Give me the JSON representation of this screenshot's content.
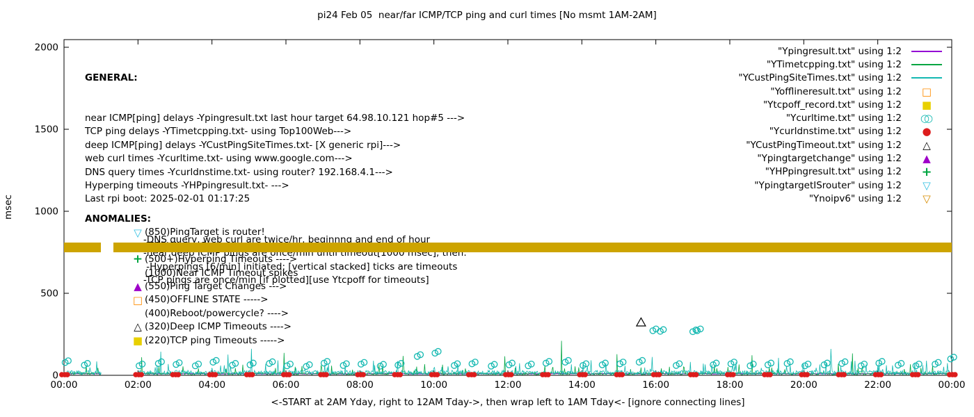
{
  "title": "pi24 Feb 05  near/far ICMP/TCP ping and curl times [No msmt 1AM-2AM]",
  "y_axis_label": "msec",
  "x_axis_caption": "<-START at 2AM Yday, right to 12AM Tday->, then wrap left to 1AM Tday<- [ignore connecting lines]",
  "general": {
    "heading": "GENERAL:",
    "lines": [
      "near ICMP[ping] delays -Ypingresult.txt last hour target 64.98.10.121 hop#5 --->",
      "TCP ping delays -YTimetcpping.txt- using Top100Web--->",
      "deep ICMP[ping] delays -YCustPingSiteTimes.txt- [X generic rpi]--->",
      "web curl times -Ycurltime.txt- using www.google.com--->",
      "DNS query times -Ycurldnstime.txt- using router? 192.168.4.1--->",
      "Hyperping timeouts -YHPpingresult.txt- --->",
      "Last rpi boot: 2025-02-01 01:17:25"
    ],
    "sub_lines": [
      "-DNS query, web curl are twice/hr, beginnng and end of hour",
      "-near,deep ICMP pings are once/min until timeout[1000 msec], then:",
      " -Hyperpings [6/min] initiated; [vertical stacked] ticks are timeouts",
      "-TCP pings are once/min [if plotted][use Ytcpoff for timeouts]"
    ]
  },
  "anomalies": {
    "heading": "ANOMALIES:",
    "items": [
      {
        "marker": "triangle-down-open",
        "color": "#31bfe2",
        "text": "(850)PingTarget is router!"
      },
      {
        "marker": "triangle-down-open",
        "color": "#d78c00",
        "text": "(785)No ipv6 ---->"
      },
      {
        "marker": "plus",
        "color": "#00a541",
        "text": "(500+)Hyperping Timeouts ---->"
      },
      {
        "marker": "none",
        "color": "#000000",
        "text": "(1000)Near ICMP Timeout spikes"
      },
      {
        "marker": "triangle-up-filled",
        "color": "#9e00c8",
        "text": "(550)Ping Target Changes --->"
      },
      {
        "marker": "square-open",
        "color": "#ff8c00",
        "text": "(450)OFFLINE STATE ----->"
      },
      {
        "marker": "none",
        "color": "#000000",
        "text": "(400)Reboot/powercycle? ---->"
      },
      {
        "marker": "triangle-up-open",
        "color": "#000000",
        "text": "(320)Deep ICMP Timeouts ---->"
      },
      {
        "marker": "square-filled",
        "color": "#e8d000",
        "text": "(220)TCP ping Timeouts ----->"
      }
    ]
  },
  "legend": [
    {
      "label": "\"Ypingresult.txt\" using 1:2",
      "marker": "line",
      "color": "#9400d3"
    },
    {
      "label": "\"YTimetcpping.txt\" using 1:2",
      "marker": "line",
      "color": "#00a541"
    },
    {
      "label": "\"YCustPingSiteTimes.txt\" using 1:2",
      "marker": "line",
      "color": "#13b8b1"
    },
    {
      "label": "\"Yofflineresult.txt\" using 1:2",
      "marker": "square-open",
      "color": "#ff8c00"
    },
    {
      "label": "\"Ytcpoff_record.txt\" using 1:2",
      "marker": "square-filled",
      "color": "#e8d000"
    },
    {
      "label": "\"Ycurltime.txt\" using 1:2",
      "marker": "circle-double",
      "color": "#13b8b1"
    },
    {
      "label": "\"Ycurldnstime.txt\" using 1:2",
      "marker": "circle-filled",
      "color": "#dd1c1c"
    },
    {
      "label": "\"YCustPingTimeout.txt\" using 1:2",
      "marker": "triangle-up-open",
      "color": "#000000"
    },
    {
      "label": "\"Ypingtargetchange\" using 1:2",
      "marker": "triangle-up-filled",
      "color": "#9e00c8"
    },
    {
      "label": "\"YHPpingresult.txt\" using 1:2",
      "marker": "plus",
      "color": "#00a541"
    },
    {
      "label": "\"YpingtargetISrouter\" using 1:2",
      "marker": "triangle-down-open",
      "color": "#31bfe2"
    },
    {
      "label": "\"Ynoipv6\" using 1:2",
      "marker": "triangle-down-open",
      "color": "#d78c00"
    }
  ],
  "chart_data": {
    "type": "line+scatter",
    "title": "pi24 Feb 05  near/far ICMP/TCP ping and curl times [No msmt 1AM-2AM]",
    "xlabel": "<-START at 2AM Yday, right to 12AM Tday->, then wrap left to 1AM Tday<- [ignore connecting lines]",
    "ylabel": "msec",
    "x_ticks": [
      "00:00",
      "02:00",
      "04:00",
      "06:00",
      "08:00",
      "10:00",
      "12:00",
      "14:00",
      "16:00",
      "18:00",
      "20:00",
      "22:00",
      "00:00"
    ],
    "y_ticks": [
      0,
      500,
      1000,
      1500,
      2000
    ],
    "ylim": [
      0,
      2046
    ],
    "x_hours": [
      0,
      24
    ],
    "grid": false,
    "legend_position": "top-right",
    "no_measurement_gap_hours": [
      1,
      2
    ],
    "band": {
      "value_low": 750,
      "value_high": 800,
      "gap_hours": [
        1.0,
        1.33
      ],
      "color": "#cda400",
      "meaning": "Ynoipv6 markers plotted continuously at ~775 msec"
    },
    "noise": {
      "seed": 1337,
      "teal": {
        "base": 4,
        "amp": 26,
        "spike_p": 0.07,
        "spike_amp": 80
      },
      "green": {
        "base": 3,
        "amp": 15,
        "spike_p": 0.045,
        "spike_amp": 65
      },
      "purple_level": 8
    },
    "green_spikes": [
      [
        13.45,
        210
      ]
    ],
    "curl_times": [
      [
        0.03,
        78
      ],
      [
        0.55,
        62
      ],
      [
        2.03,
        58
      ],
      [
        2.55,
        72
      ],
      [
        3.03,
        66
      ],
      [
        3.55,
        58
      ],
      [
        4.03,
        80
      ],
      [
        4.55,
        62
      ],
      [
        5.03,
        64
      ],
      [
        5.55,
        72
      ],
      [
        6.03,
        58
      ],
      [
        6.55,
        54
      ],
      [
        7.03,
        74
      ],
      [
        7.55,
        60
      ],
      [
        8.03,
        68
      ],
      [
        8.55,
        56
      ],
      [
        9.03,
        62
      ],
      [
        9.55,
        115
      ],
      [
        10.03,
        135
      ],
      [
        10.55,
        60
      ],
      [
        11.03,
        70
      ],
      [
        11.55,
        56
      ],
      [
        12.03,
        64
      ],
      [
        12.55,
        58
      ],
      [
        13.03,
        74
      ],
      [
        13.55,
        80
      ],
      [
        14.03,
        60
      ],
      [
        14.55,
        64
      ],
      [
        15.03,
        70
      ],
      [
        15.55,
        80
      ],
      [
        15.92,
        272
      ],
      [
        16.12,
        268
      ],
      [
        16.55,
        60
      ],
      [
        17.0,
        266
      ],
      [
        17.12,
        272
      ],
      [
        17.55,
        64
      ],
      [
        18.03,
        70
      ],
      [
        18.55,
        58
      ],
      [
        19.03,
        64
      ],
      [
        19.55,
        72
      ],
      [
        20.03,
        58
      ],
      [
        20.55,
        64
      ],
      [
        21.03,
        72
      ],
      [
        21.55,
        58
      ],
      [
        22.03,
        74
      ],
      [
        22.55,
        62
      ],
      [
        23.03,
        58
      ],
      [
        23.55,
        68
      ],
      [
        23.97,
        100
      ]
    ],
    "dns_hours": [
      0,
      2,
      3,
      4,
      5,
      6,
      7,
      8,
      9,
      10,
      11,
      12,
      13,
      14,
      15,
      16,
      17,
      18,
      19,
      20,
      21,
      22,
      23,
      24
    ],
    "dns_value": 4,
    "deep_icmp_timeouts": [
      [
        15.6,
        320
      ]
    ],
    "series_colors": {
      "near_icmp_ping": "#9400d3",
      "tcp_ping": "#00a541",
      "deep_icmp_ping": "#13b8b1",
      "web_curl": "#13b8b1",
      "dns_query": "#dd1c1c",
      "deep_icmp_timeout": "#000000"
    }
  }
}
